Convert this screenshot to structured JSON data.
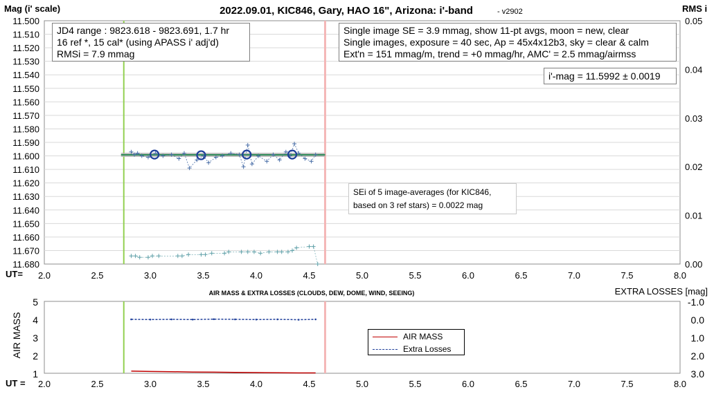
{
  "title": "2022.09.01, KIC846, Gary, HAO 16\", Arizona: i'-band",
  "version": "- v2902",
  "colors": {
    "mag_points": "#4a6fa8",
    "check_points": "#5fa0a8",
    "avg_circle": "#1f3f9a",
    "fit_line": "#2e8b57",
    "band": "#b0b0b0",
    "start_line": "#92d050",
    "end_line": "#f4b6b6",
    "airmass_line": "#c00000",
    "losses_line": "#1f3f9a"
  },
  "chart_data": [
    {
      "type": "scatter",
      "title": "2022.09.01, KIC846, Gary, HAO 16\", Arizona: i'-band",
      "ylabel": "Mag (i' scale)",
      "y2label": "RMS i",
      "xlabel": "UT=",
      "xlim": [
        2.0,
        8.0
      ],
      "ylim": [
        11.68,
        11.5
      ],
      "y2lim": [
        0.0,
        0.05
      ],
      "x_ticks": [
        "2.0",
        "2.5",
        "3.0",
        "3.5",
        "4.0",
        "4.5",
        "5.0",
        "5.5",
        "6.0",
        "6.5",
        "7.0",
        "7.5",
        "8.0"
      ],
      "y_ticks": [
        "11.500",
        "11.510",
        "11.520",
        "11.530",
        "11.540",
        "11.550",
        "11.560",
        "11.570",
        "11.580",
        "11.590",
        "11.600",
        "11.610",
        "11.620",
        "11.630",
        "11.640",
        "11.650",
        "11.660",
        "11.670",
        "11.680"
      ],
      "y2_ticks": [
        "0.05",
        "0.04",
        "0.03",
        "0.02",
        "0.01",
        "0.00"
      ],
      "grid": true,
      "start_ut": 2.75,
      "end_ut": 4.65,
      "fit_mag": 11.5992,
      "series": [
        {
          "name": "",
          "kind": "target",
          "x": [
            2.82,
            2.85,
            2.88,
            2.92,
            2.98,
            3.05,
            3.12,
            3.2,
            3.27,
            3.32,
            3.37,
            3.44,
            3.5,
            3.55,
            3.62,
            3.68,
            3.76,
            3.84,
            3.88,
            3.92,
            3.96,
            4.02,
            4.1,
            4.16,
            4.22,
            4.28,
            4.32,
            4.36,
            4.4,
            4.46,
            4.52,
            4.56
          ],
          "y": [
            11.597,
            11.599,
            11.598,
            11.6,
            11.601,
            11.598,
            11.6,
            11.599,
            11.602,
            11.598,
            11.609,
            11.603,
            11.6,
            11.605,
            11.601,
            11.6,
            11.598,
            11.599,
            11.608,
            11.592,
            11.606,
            11.6,
            11.604,
            11.599,
            11.603,
            11.597,
            11.6,
            11.591,
            11.598,
            11.602,
            11.604,
            11.599
          ]
        },
        {
          "name": "",
          "kind": "average",
          "x": [
            3.04,
            3.48,
            3.91,
            4.34
          ],
          "y": [
            11.599,
            11.5995,
            11.599,
            11.599
          ]
        },
        {
          "name": "",
          "kind": "check",
          "x": [
            2.82,
            2.86,
            2.9,
            2.98,
            3.02,
            3.08,
            3.26,
            3.3,
            3.36,
            3.48,
            3.52,
            3.58,
            3.7,
            3.74,
            3.86,
            3.92,
            3.98,
            4.04,
            4.12,
            4.2,
            4.24,
            4.3,
            4.34,
            4.38,
            4.5,
            4.54,
            4.58
          ],
          "y": [
            11.674,
            11.674,
            11.675,
            11.675,
            11.674,
            11.674,
            11.674,
            11.674,
            11.673,
            11.673,
            11.673,
            11.672,
            11.672,
            11.671,
            11.671,
            11.671,
            11.671,
            11.672,
            11.671,
            11.671,
            11.671,
            11.671,
            11.67,
            11.668,
            11.667,
            11.667,
            11.68
          ]
        }
      ]
    },
    {
      "type": "line",
      "title": "AIR MASS & EXTRA LOSSES (CLOUDS, DEW, DOME, WIND, SEEING)",
      "ylabel": "AIR MASS",
      "y2label": "EXTRA LOSSES [mag]",
      "xlabel": "UT =",
      "xlim": [
        2.0,
        8.0
      ],
      "ylim": [
        1,
        5
      ],
      "y2lim": [
        3.0,
        -1.0
      ],
      "x_ticks": [
        "2.0",
        "2.5",
        "3.0",
        "3.5",
        "4.0",
        "4.5",
        "5.0",
        "5.5",
        "6.0",
        "6.5",
        "7.0",
        "7.5",
        "8.0"
      ],
      "y_ticks": [
        "5",
        "4",
        "3",
        "2",
        "1"
      ],
      "y2_ticks": [
        "-1.0",
        "0.0",
        "1.0",
        "2.0",
        "3.0"
      ],
      "grid": false,
      "series": [
        {
          "name": "AIR MASS",
          "x": [
            2.82,
            3.0,
            3.2,
            3.4,
            3.6,
            3.8,
            4.0,
            4.2,
            4.4,
            4.56
          ],
          "y": [
            1.12,
            1.1,
            1.09,
            1.07,
            1.06,
            1.05,
            1.04,
            1.03,
            1.02,
            1.02
          ]
        },
        {
          "name": "Extra Losses",
          "x": [
            2.82,
            3.0,
            3.2,
            3.4,
            3.6,
            3.8,
            4.0,
            4.2,
            4.4,
            4.56
          ],
          "y": [
            0.0,
            0.01,
            0.0,
            0.01,
            -0.01,
            0.0,
            0.01,
            0.0,
            0.02,
            0.0
          ]
        }
      ]
    }
  ],
  "info_left": {
    "line1": "JD4 range : 9823.618 - 9823.691, 1.7  hr",
    "line2": "16 ref *, 15 cal* (using APASS i' adj'd)",
    "line3": "RMSi = 7.9 mmag"
  },
  "info_right": {
    "line1": "Single image SE = 3.9 mmag, show 11-pt avgs, moon = new, clear",
    "line2": "Single images, exposure = 40 sec, Ap = 45x4x12b3, sky = clear & calm",
    "line3": "Ext'n = 151 mmag/m, trend = +0 mmag/hr, AMC' = 2.5 mmag/airmss"
  },
  "mag_result": "i'-mag = 11.5992 ± 0.0019",
  "sei_note": {
    "line1": "SEi of 5 image-averages (for KIC846,",
    "line2": "based on 3 ref stars) = 0.0022 mag"
  }
}
